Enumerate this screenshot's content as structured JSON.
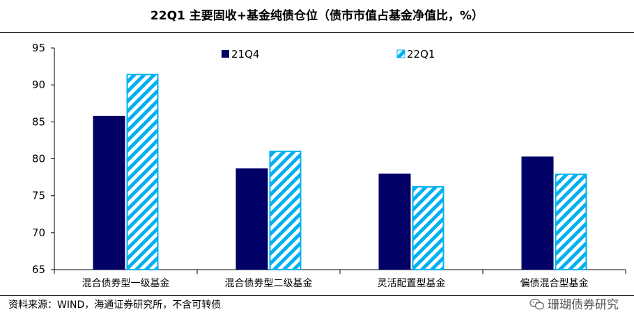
{
  "title": "22Q1 主要固收+基金纯债仓位（债市市值占基金净值比，%）",
  "source": "资料来源：WIND，海通证券研究所，不含可转债",
  "watermark": "珊瑚债券研究",
  "colors": {
    "series_21q4": "#000066",
    "series_22q1": "#00B0F0"
  },
  "chart_data": {
    "type": "bar",
    "categories": [
      "混合债券型一级基金",
      "混合债券型二级基金",
      "灵活配置型基金",
      "偏债混合型基金"
    ],
    "series": [
      {
        "name": "21Q4",
        "values": [
          85.8,
          78.7,
          78.0,
          80.3
        ],
        "style": "solid"
      },
      {
        "name": "22Q1",
        "values": [
          91.5,
          81.1,
          76.3,
          78.0
        ],
        "style": "hatched"
      }
    ],
    "ylim": [
      65,
      95
    ],
    "yticks": [
      65,
      70,
      75,
      80,
      85,
      90,
      95
    ],
    "legend": "top-center",
    "grid": false
  }
}
